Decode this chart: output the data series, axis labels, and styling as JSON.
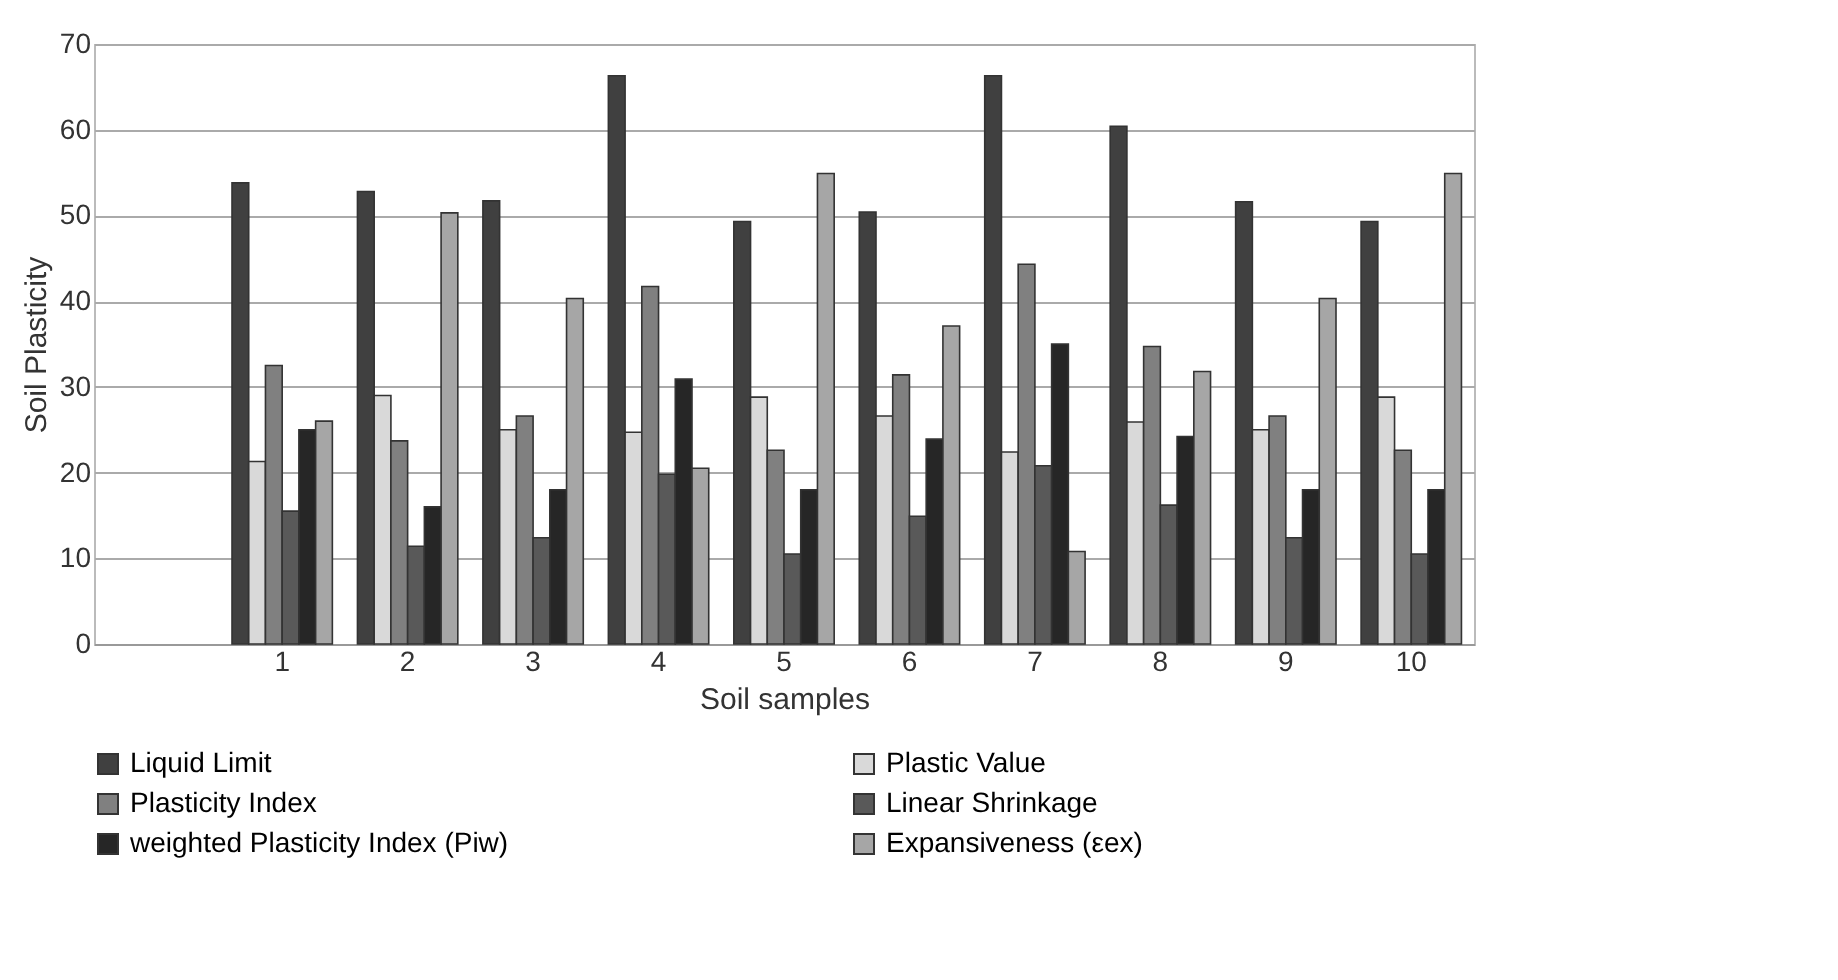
{
  "chart_data": {
    "type": "bar",
    "xlabel": "Soil samples",
    "ylabel": "Soil Plasticity",
    "categories": [
      null,
      "1",
      "2",
      "3",
      "4",
      "5",
      "6",
      "7",
      "8",
      "9",
      "10"
    ],
    "ylim": [
      0,
      70
    ],
    "yticks": [
      0,
      10,
      20,
      30,
      40,
      50,
      60,
      70
    ],
    "grid": "y",
    "legend": "bottom",
    "series": [
      {
        "name": "Liquid Limit",
        "color": "#404040",
        "values": [
          null,
          53.8,
          52.8,
          51.7,
          66.3,
          49.3,
          50.4,
          66.3,
          60.4,
          51.6,
          49.3
        ]
      },
      {
        "name": "Plastic Value",
        "color": "#d9d9d9",
        "values": [
          null,
          21.3,
          29,
          25,
          24.7,
          28.8,
          26.6,
          22.4,
          25.9,
          25,
          28.8
        ]
      },
      {
        "name": "Plasticity Index",
        "color": "#808080",
        "values": [
          null,
          32.5,
          23.7,
          26.6,
          41.7,
          22.6,
          31.4,
          44.3,
          34.7,
          26.6,
          22.6
        ]
      },
      {
        "name": "Linear Shrinkage",
        "color": "#595959",
        "values": [
          null,
          15.5,
          11.4,
          12.4,
          19.8,
          10.5,
          14.9,
          20.8,
          16.2,
          12.4,
          10.5
        ]
      },
      {
        "name": "weighted Plasticity Index (Piw)",
        "color": "#262626",
        "values": [
          null,
          25,
          16,
          18,
          30.9,
          18,
          23.9,
          35,
          24.2,
          18,
          18
        ]
      },
      {
        "name": "Expansiveness (εex)",
        "color": "#a6a6a6",
        "values": [
          null,
          26,
          50.3,
          40.3,
          20.5,
          54.9,
          37.1,
          10.8,
          31.8,
          40.3,
          54.9
        ]
      }
    ]
  }
}
